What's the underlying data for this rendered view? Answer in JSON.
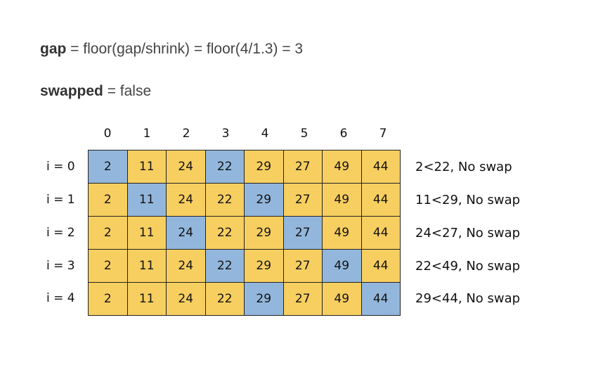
{
  "header": {
    "gap_label": "gap",
    "gap_expression": " = floor(gap/shrink) = floor(4/1.3) = 3",
    "swapped_label": "swapped",
    "swapped_expression": " = false"
  },
  "column_indices": [
    "0",
    "1",
    "2",
    "3",
    "4",
    "5",
    "6",
    "7"
  ],
  "rows": [
    {
      "label": "i = 0",
      "values": [
        "2",
        "11",
        "24",
        "22",
        "29",
        "27",
        "49",
        "44"
      ],
      "compared": [
        0,
        3
      ],
      "result": "2<22, No swap"
    },
    {
      "label": "i = 1",
      "values": [
        "2",
        "11",
        "24",
        "22",
        "29",
        "27",
        "49",
        "44"
      ],
      "compared": [
        1,
        4
      ],
      "result": "11<29, No swap"
    },
    {
      "label": "i = 2",
      "values": [
        "2",
        "11",
        "24",
        "22",
        "29",
        "27",
        "49",
        "44"
      ],
      "compared": [
        2,
        5
      ],
      "result": "24<27, No swap"
    },
    {
      "label": "i = 3",
      "values": [
        "2",
        "11",
        "24",
        "22",
        "29",
        "27",
        "49",
        "44"
      ],
      "compared": [
        3,
        6
      ],
      "result": "22<49, No swap"
    },
    {
      "label": "i = 4",
      "values": [
        "2",
        "11",
        "24",
        "22",
        "29",
        "27",
        "49",
        "44"
      ],
      "compared": [
        4,
        7
      ],
      "result": "29<44, No swap"
    }
  ],
  "colors": {
    "default_cell": "#f7cf60",
    "compared_cell": "#93b7dc",
    "border": "#222222"
  }
}
